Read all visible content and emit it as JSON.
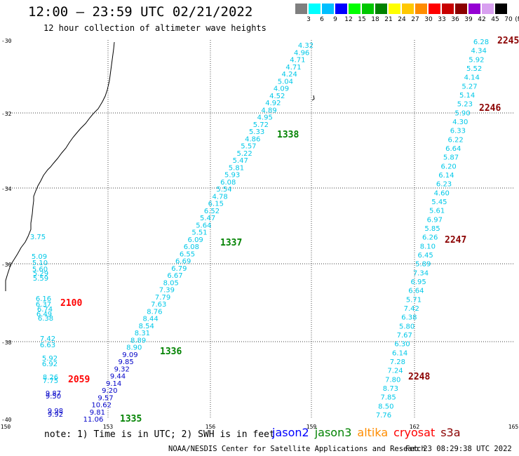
{
  "header": {
    "title": "12:00 — 23:59 UTC 02/21/2022",
    "subtitle": "12 hour collection of altimeter wave heights"
  },
  "legend": {
    "unit": "(ft)",
    "ticks": [
      "3",
      "6",
      "9",
      "12",
      "15",
      "18",
      "21",
      "24",
      "27",
      "30",
      "33",
      "36",
      "39",
      "42",
      "45",
      "70"
    ],
    "colors": [
      "#7f7f7f",
      "#00ffff",
      "#00bfff",
      "#0000ff",
      "#00ff00",
      "#00c800",
      "#008200",
      "#ffff00",
      "#ffc800",
      "#ff8c00",
      "#ff0000",
      "#c80000",
      "#8b0000",
      "#9400d3",
      "#d8a0f0",
      "#000000"
    ]
  },
  "map": {
    "lat_labels": [
      "-30",
      "-32",
      "-34",
      "-36",
      "-38",
      "-40"
    ],
    "lon_labels": [
      "150",
      "153",
      "156",
      "159",
      "162",
      "165"
    ],
    "color_cyan": "#00c8e8",
    "color_navy": "#0000c8",
    "time_labels": [
      {
        "text": "2245",
        "color": "#8b0000"
      },
      {
        "text": "2246",
        "color": "#8b0000"
      },
      {
        "text": "2247",
        "color": "#8b0000"
      },
      {
        "text": "2248",
        "color": "#8b0000"
      },
      {
        "text": "1338",
        "color": "#008200"
      },
      {
        "text": "1337",
        "color": "#008200"
      },
      {
        "text": "1336",
        "color": "#008200"
      },
      {
        "text": "1335",
        "color": "#008200"
      },
      {
        "text": "2100",
        "color": "#ff0000"
      },
      {
        "text": "2059",
        "color": "#ff0000"
      }
    ],
    "tracks": {
      "track_east": [
        "6.28",
        "4.34",
        "5.92",
        "5.52",
        "4.14",
        "5.27",
        "5.14",
        "5.23",
        "5.90",
        "4.30",
        "6.33",
        "6.22",
        "6.64",
        "5.87",
        "6.20",
        "6.14",
        "6.23",
        "4.60",
        "5.45",
        "5.61",
        "6.97",
        "5.85",
        "6.26",
        "8.10",
        "6.45",
        "5.89",
        "7.34",
        "6.95",
        "6.64",
        "5.71",
        "7.42",
        "6.38",
        "5.80",
        "7.67",
        "6.30",
        "6.14",
        "7.28",
        "7.24",
        "7.80",
        "8.73",
        "7.85",
        "8.50",
        "7.76"
      ],
      "track_middle": [
        "4.32",
        "4.96",
        "4.71",
        "4.71",
        "4.24",
        "5.04",
        "4.09",
        "4.52",
        "4.92",
        "4.89",
        "4.95",
        "5.72",
        "5.33",
        "4.86",
        "5.57",
        "5.22",
        "5.47",
        "5.81",
        "5.93",
        "6.08",
        "5.54",
        "4.78",
        "6.15",
        "6.52",
        "5.47",
        "5.64",
        "5.51",
        "6.09",
        "6.08",
        "6.55",
        "6.69",
        "6.79",
        "6.67",
        "8.05",
        "7.39",
        "7.79",
        "7.63",
        "8.76",
        "8.44",
        "8.54",
        "8.31",
        "8.89",
        "8.90",
        "9.09",
        "9.85",
        "9.32",
        "9.44",
        "9.14",
        "9.20",
        "9.57",
        "10.62",
        "9.81",
        "11.06"
      ],
      "track_west": [
        "3.75",
        "5.09",
        "5.10",
        "5.60",
        "5.29",
        "5.59",
        "6.16",
        "6.37",
        "6.74",
        "6.49",
        "6.38",
        "7.42",
        "6.63",
        "5.92",
        "6.92",
        "8.26",
        "7.75",
        "9.87",
        "9.50",
        "9.98",
        "9.92"
      ]
    }
  },
  "footer": {
    "note": "note: 1) Time is in UTC; 2) SWH is in feet",
    "missions": [
      {
        "name": "jason2",
        "color": "#0000ff"
      },
      {
        "name": "jason3",
        "color": "#008200"
      },
      {
        "name": "altika",
        "color": "#ff8c00"
      },
      {
        "name": "cryosat",
        "color": "#ff0000"
      },
      {
        "name": "s3a",
        "color": "#8b0000"
      }
    ],
    "credit": "NOAA/NESDIS Center for Satellite Applications and Research",
    "timestamp": "Feb 23 08:29:38 UTC 2022"
  }
}
